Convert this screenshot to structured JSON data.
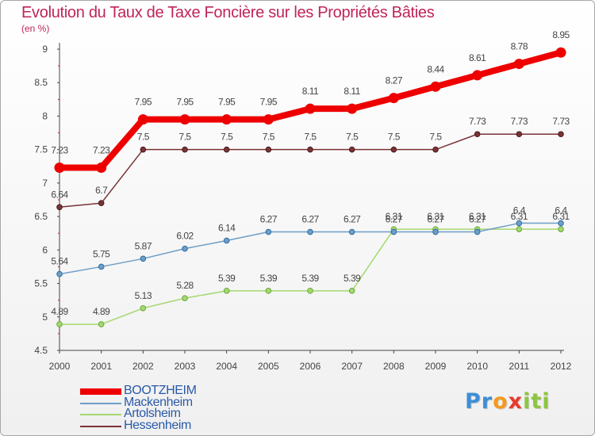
{
  "title": "Evolution du Taux de Taxe Foncière sur les Propriétés Bâties",
  "unit_label": "(en %)",
  "brand": {
    "parts": [
      "Pr",
      "o",
      "x",
      "iti"
    ],
    "colors": [
      "#3d8fd6",
      "#f39a1e",
      "#e8392c",
      "#8cc63f"
    ]
  },
  "chart_data": {
    "type": "line",
    "title": "Evolution du Taux de Taxe Foncière sur les Propriétés Bâties",
    "ylabel": "(en %)",
    "xlabel": "",
    "ylim": [
      4.5,
      9
    ],
    "yticks": [
      "4.5",
      "5",
      "5.5",
      "6",
      "6.5",
      "7",
      "7.5",
      "8",
      "8.5",
      "9"
    ],
    "categories": [
      "2000",
      "2001",
      "2002",
      "2003",
      "2004",
      "2005",
      "2006",
      "2007",
      "2008",
      "2009",
      "2010",
      "2011",
      "2012"
    ],
    "series": [
      {
        "name": "BOOTZHEIM",
        "color": "#ee0000",
        "values": [
          7.23,
          7.23,
          7.95,
          7.95,
          7.95,
          7.95,
          8.11,
          8.11,
          8.27,
          8.44,
          8.61,
          8.78,
          8.95
        ],
        "labels": [
          "7.23",
          "7.23",
          "7.95",
          "7.95",
          "7.95",
          "7.95",
          "8.11",
          "8.11",
          "8.27",
          "8.44",
          "8.61",
          "8.78",
          "8.95"
        ]
      },
      {
        "name": "Mackenheim",
        "color": "#6e9ec6",
        "values": [
          5.64,
          5.75,
          5.87,
          6.02,
          6.14,
          6.27,
          6.27,
          6.27,
          6.27,
          6.27,
          6.27,
          6.4,
          6.4
        ],
        "labels": [
          "5.64",
          "5.75",
          "5.87",
          "6.02",
          "6.14",
          "6.27",
          "6.27",
          "6.27",
          "6.27",
          "6.27",
          "6.27",
          "6.4",
          "6.4"
        ]
      },
      {
        "name": "Artolsheim",
        "color": "#a5d86f",
        "values": [
          4.89,
          4.89,
          5.13,
          5.28,
          5.39,
          5.39,
          5.39,
          5.39,
          6.31,
          6.31,
          6.31,
          6.31,
          6.31
        ],
        "labels": [
          "4.89",
          "4.89",
          "5.13",
          "5.28",
          "5.39",
          "5.39",
          "5.39",
          "5.39",
          "6.31",
          "6.31",
          "6.31",
          "6.31",
          "6.31"
        ]
      },
      {
        "name": "Hessenheim",
        "color": "#7a3336",
        "values": [
          6.64,
          6.7,
          7.5,
          7.5,
          7.5,
          7.5,
          7.5,
          7.5,
          7.5,
          7.5,
          7.73,
          7.73,
          7.73
        ],
        "labels": [
          "6.64",
          "6.7",
          "7.5",
          "7.5",
          "7.5",
          "7.5",
          "7.5",
          "7.5",
          "7.5",
          "7.5",
          "7.73",
          "7.73",
          "7.73"
        ]
      }
    ],
    "grid": false,
    "legend_position": "bottom-left"
  }
}
